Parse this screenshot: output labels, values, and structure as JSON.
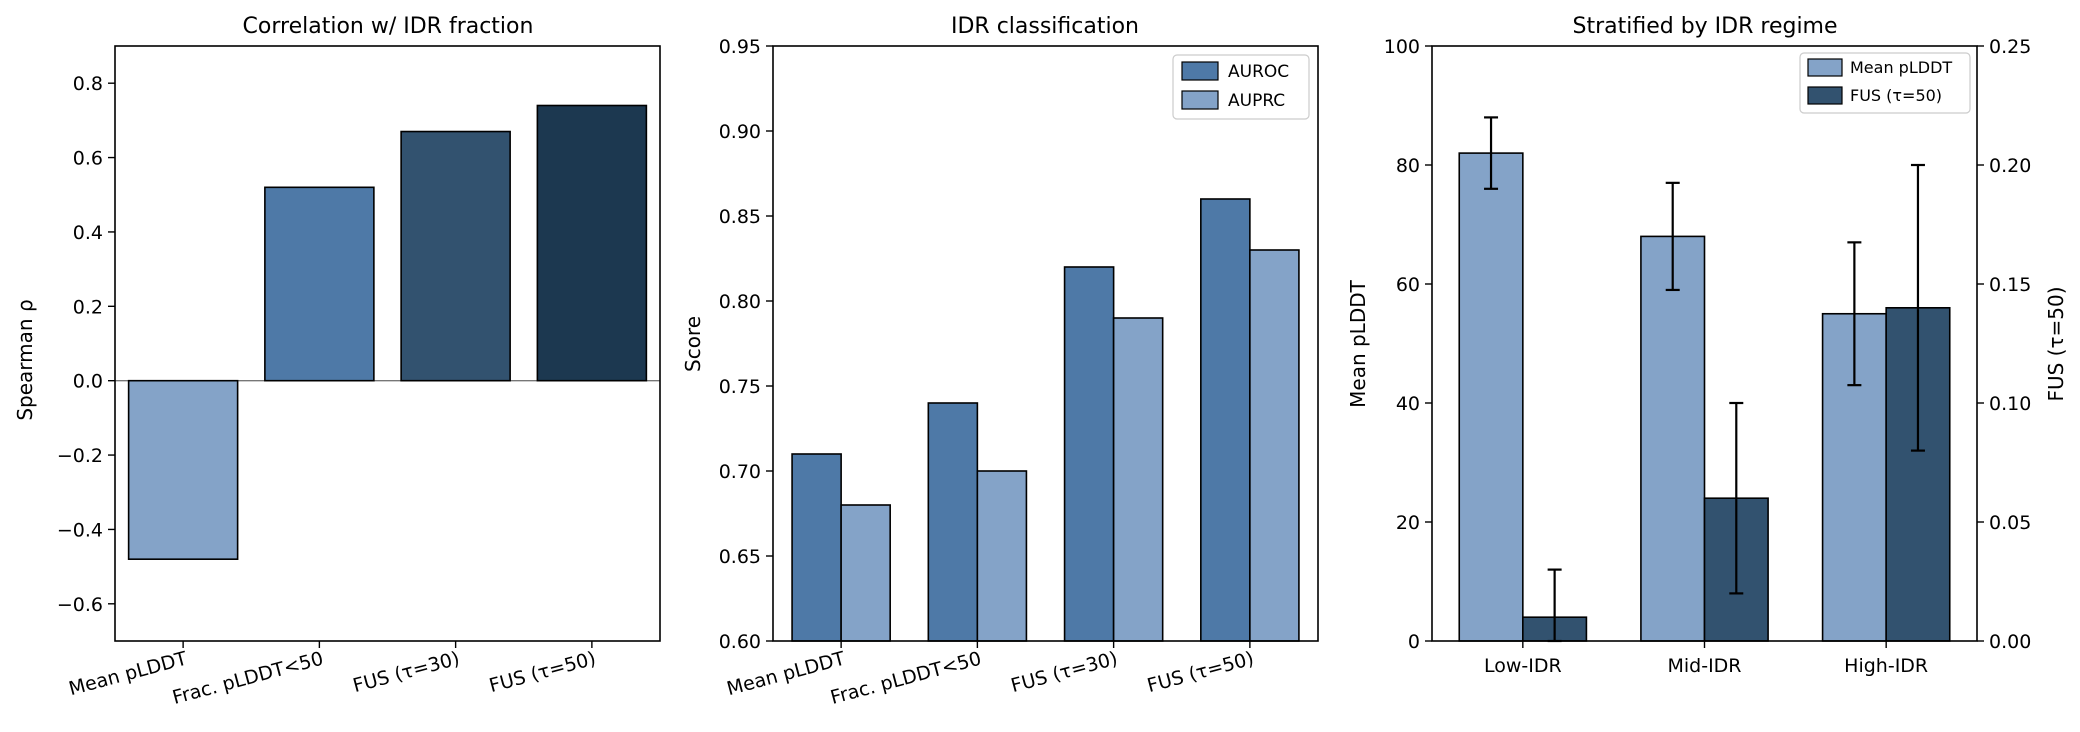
{
  "chart_data": [
    {
      "type": "bar",
      "title": "Correlation w/ IDR fraction",
      "ylabel": "Spearman ρ",
      "categories": [
        "Mean pLDDT",
        "Frac. pLDDT<50",
        "FUS (τ=30)",
        "FUS (τ=50)"
      ],
      "values": [
        -0.48,
        0.52,
        0.67,
        0.74
      ],
      "colors": [
        "#84a3c8",
        "#4e79a7",
        "#32526f",
        "#1c3850"
      ],
      "ylim": [
        -0.7,
        0.9
      ],
      "yticks": [
        -0.6,
        -0.4,
        -0.2,
        0.0,
        0.2,
        0.4,
        0.6,
        0.8
      ],
      "ytick_labels": [
        "−0.6",
        "−0.4",
        "−0.2",
        "0.0",
        "0.2",
        "0.4",
        "0.6",
        "0.8"
      ]
    },
    {
      "type": "bar",
      "title": "IDR classification",
      "ylabel": "Score",
      "categories": [
        "Mean pLDDT",
        "Frac. pLDDT<50",
        "FUS (τ=30)",
        "FUS (τ=50)"
      ],
      "series": [
        {
          "name": "AUROC",
          "values": [
            0.71,
            0.74,
            0.82,
            0.86
          ],
          "color": "#4e79a7"
        },
        {
          "name": "AUPRC",
          "values": [
            0.68,
            0.7,
            0.79,
            0.83
          ],
          "color": "#84a3c8"
        }
      ],
      "ylim": [
        0.6,
        0.95
      ],
      "yticks": [
        0.6,
        0.65,
        0.7,
        0.75,
        0.8,
        0.85,
        0.9,
        0.95
      ],
      "ytick_labels": [
        "0.60",
        "0.65",
        "0.70",
        "0.75",
        "0.80",
        "0.85",
        "0.90",
        "0.95"
      ],
      "legend": "top-right"
    },
    {
      "type": "bar",
      "title": "Stratified by IDR regime",
      "categories": [
        "Low-IDR",
        "Mid-IDR",
        "High-IDR"
      ],
      "series": [
        {
          "name": "Mean pLDDT",
          "axis": "left",
          "values": [
            82,
            68,
            55
          ],
          "err_low": [
            76,
            59,
            43
          ],
          "err_high": [
            88,
            77,
            67
          ],
          "color": "#84a3c8"
        },
        {
          "name": "FUS (τ=50)",
          "axis": "right",
          "values": [
            0.01,
            0.06,
            0.14
          ],
          "err_low": [
            0.0,
            0.02,
            0.08
          ],
          "err_high": [
            0.03,
            0.1,
            0.2
          ],
          "color": "#32526f"
        }
      ],
      "ylabel_left": "Mean pLDDT",
      "ylabel_right": "FUS (τ=50)",
      "ylim_left": [
        0,
        100
      ],
      "ylim_right": [
        0.0,
        0.25
      ],
      "yticks_left": [
        0,
        20,
        40,
        60,
        80,
        100
      ],
      "ytick_labels_left": [
        "0",
        "20",
        "40",
        "60",
        "80",
        "100"
      ],
      "yticks_right": [
        0.0,
        0.05,
        0.1,
        0.15,
        0.2,
        0.25
      ],
      "ytick_labels_right": [
        "0.00",
        "0.05",
        "0.10",
        "0.15",
        "0.20",
        "0.25"
      ],
      "left_axis_color": "#4e79a7",
      "right_axis_color": "#1c3850",
      "legend": "top-right"
    }
  ]
}
